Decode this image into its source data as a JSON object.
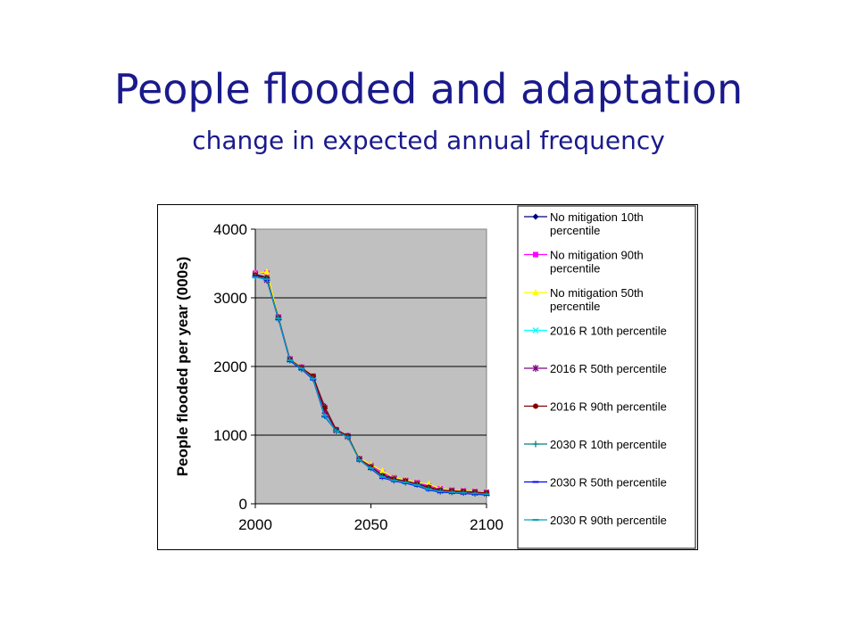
{
  "slide": {
    "title": "People flooded and adaptation",
    "subtitle": "change in expected annual frequency"
  },
  "chart_data": {
    "type": "line",
    "xlabel": "",
    "ylabel": "People flooded per year (000s)",
    "xlim": [
      2000,
      2100
    ],
    "ylim": [
      0,
      4000
    ],
    "xticks": [
      "2000",
      "2050",
      "2100"
    ],
    "yticks": [
      "0",
      "1000",
      "2000",
      "3000",
      "4000"
    ],
    "grid": "horizontal",
    "plot_background": "#c0c0c0",
    "legend_position": "right",
    "x": [
      2000,
      2005,
      2010,
      2015,
      2020,
      2025,
      2030,
      2035,
      2040,
      2045,
      2050,
      2055,
      2060,
      2065,
      2070,
      2075,
      2080,
      2085,
      2090,
      2095,
      2100
    ],
    "series": [
      {
        "name": "No mitigation 10th percentile",
        "color": "#000080",
        "marker": "diamond",
        "values": [
          3340,
          3300,
          2720,
          2100,
          1980,
          1850,
          1420,
          1080,
          990,
          660,
          540,
          420,
          370,
          330,
          300,
          240,
          200,
          190,
          180,
          170,
          160
        ]
      },
      {
        "name": "No mitigation 90th percentile",
        "color": "#ff00ff",
        "marker": "square",
        "values": [
          3360,
          3360,
          2720,
          2110,
          1990,
          1860,
          1400,
          1080,
          990,
          660,
          560,
          450,
          380,
          340,
          310,
          260,
          220,
          200,
          190,
          180,
          170
        ]
      },
      {
        "name": "No mitigation 50th percentile",
        "color": "#ffff00",
        "marker": "triangle",
        "values": [
          3350,
          3380,
          2720,
          2110,
          1990,
          1860,
          1400,
          1080,
          990,
          670,
          570,
          480,
          380,
          350,
          310,
          290,
          220,
          200,
          190,
          180,
          170
        ]
      },
      {
        "name": "2016 R 10th percentile",
        "color": "#00ffff",
        "marker": "x",
        "values": [
          3320,
          3280,
          2700,
          2090,
          1970,
          1830,
          1300,
          1070,
          980,
          650,
          530,
          410,
          360,
          320,
          280,
          230,
          190,
          180,
          170,
          160,
          150
        ]
      },
      {
        "name": "2016 R 50th percentile",
        "color": "#800080",
        "marker": "star",
        "values": [
          3330,
          3260,
          2710,
          2100,
          1980,
          1840,
          1350,
          1070,
          980,
          650,
          530,
          400,
          360,
          330,
          290,
          230,
          190,
          180,
          170,
          160,
          150
        ]
      },
      {
        "name": "2016 R 90th percentile",
        "color": "#800000",
        "marker": "circle",
        "values": [
          3330,
          3290,
          2710,
          2100,
          1980,
          1860,
          1400,
          1080,
          990,
          650,
          540,
          410,
          360,
          330,
          290,
          240,
          200,
          190,
          180,
          170,
          160
        ]
      },
      {
        "name": "2030 R 10th percentile",
        "color": "#008080",
        "marker": "plus",
        "values": [
          3310,
          3270,
          2690,
          2090,
          1960,
          1820,
          1280,
          1060,
          970,
          640,
          520,
          390,
          340,
          310,
          280,
          220,
          180,
          170,
          160,
          150,
          140
        ]
      },
      {
        "name": "2030 R 50th percentile",
        "color": "#0000ff",
        "marker": "dash",
        "values": [
          3310,
          3260,
          2690,
          2080,
          1960,
          1810,
          1270,
          1060,
          970,
          640,
          510,
          380,
          330,
          300,
          260,
          200,
          170,
          160,
          150,
          140,
          130
        ]
      },
      {
        "name": "2030 R 90th percentile",
        "color": "#00a0c0",
        "marker": "dash",
        "values": [
          3300,
          3270,
          2700,
          2090,
          1970,
          1820,
          1280,
          1060,
          970,
          640,
          520,
          390,
          340,
          310,
          270,
          210,
          180,
          170,
          160,
          150,
          140
        ]
      }
    ]
  }
}
